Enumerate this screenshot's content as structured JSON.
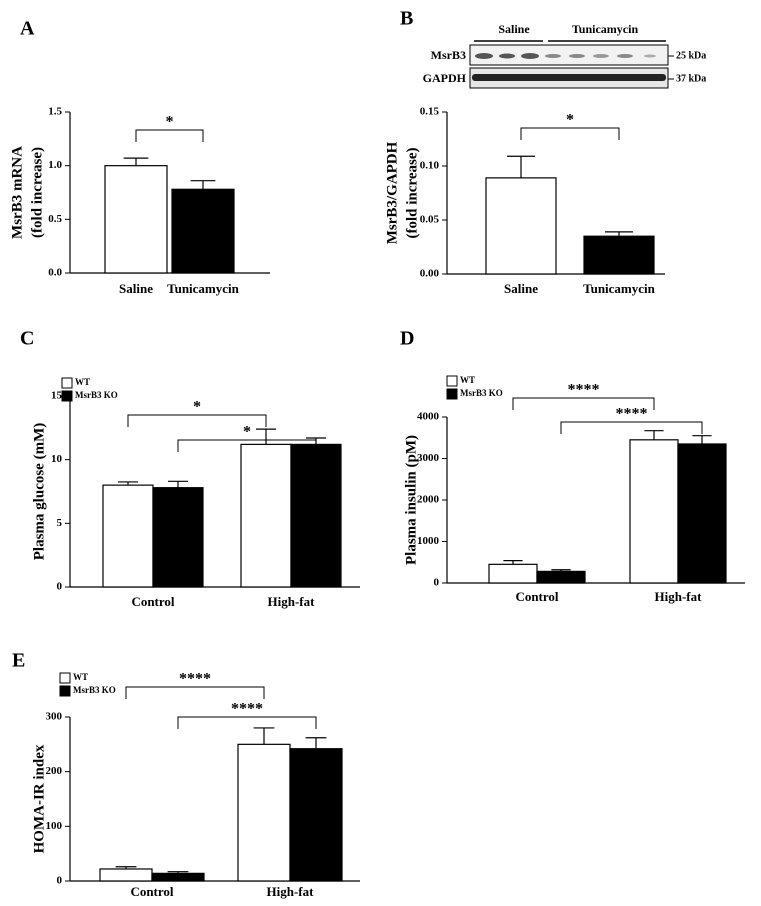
{
  "chart_data": [
    {
      "type": "bar",
      "panel": "A",
      "ylabel": [
        "MsrB3 mRNA",
        "(fold increase)"
      ],
      "categories": [
        "Saline",
        "Tunicamycin"
      ],
      "values": [
        1.0,
        0.78
      ],
      "errors": [
        0.07,
        0.08
      ],
      "color": "#ffffff",
      "colors": [
        "#ffffff",
        "#000000"
      ],
      "ylim": [
        0,
        1.5
      ],
      "yticks": [
        {
          "value": 0,
          "label": "0.0"
        },
        {
          "value": 0.5,
          "label": "0.5"
        },
        {
          "value": 1,
          "label": "1.0"
        },
        {
          "value": 1.5,
          "label": "1.5"
        }
      ],
      "annotations": [
        "*"
      ]
    },
    {
      "type": "bar",
      "panel": "B",
      "ylabel": [
        "MsrB3/GAPDH",
        "(fold increase)"
      ],
      "categories": [
        "Saline",
        "Tunicamycin"
      ],
      "values": [
        0.089,
        0.035
      ],
      "errors": [
        0.02,
        0.004
      ],
      "colors": [
        "#ffffff",
        "#000000"
      ],
      "ylim": [
        0,
        0.15
      ],
      "yticks": [
        {
          "value": 0,
          "label": "0.00"
        },
        {
          "value": 0.05,
          "label": "0.05"
        },
        {
          "value": 0.1,
          "label": "0.10"
        },
        {
          "value": 0.15,
          "label": "0.15"
        }
      ],
      "annotations": [
        "*"
      ],
      "blot": {
        "lanes": [
          "Saline",
          "Tunicamycin"
        ],
        "rows": [
          "MsrB3",
          "GAPDH"
        ],
        "markers": [
          "25 kDa",
          "37 kDa"
        ]
      }
    },
    {
      "type": "grouped-bar",
      "panel": "C",
      "ylabel": [
        "Plasma glucose (mM)"
      ],
      "categories": [
        "Control",
        "High-fat"
      ],
      "series": [
        {
          "name": "WT",
          "color": "#ffffff",
          "values": [
            8.0,
            11.2
          ],
          "errors": [
            0.25,
            1.2
          ]
        },
        {
          "name": "MsrB3 KO",
          "color": "#000000",
          "values": [
            7.8,
            11.2
          ],
          "errors": [
            0.5,
            0.5
          ]
        }
      ],
      "ylim": [
        0,
        15
      ],
      "yticks": [
        0,
        5,
        10,
        15
      ],
      "legend": "top-left",
      "annotations": [
        "*",
        "*"
      ]
    },
    {
      "type": "grouped-bar",
      "panel": "D",
      "ylabel": [
        "Plasma insulin (pM)"
      ],
      "categories": [
        "Control",
        "High-fat"
      ],
      "series": [
        {
          "name": "WT",
          "color": "#ffffff",
          "values": [
            450,
            3450
          ],
          "errors": [
            90,
            220
          ]
        },
        {
          "name": "MsrB3 KO",
          "color": "#000000",
          "values": [
            280,
            3350
          ],
          "errors": [
            40,
            200
          ]
        }
      ],
      "ylim": [
        0,
        4000
      ],
      "yticks": [
        0,
        1000,
        2000,
        3000,
        4000
      ],
      "legend": "top-left",
      "annotations": [
        "****",
        "****"
      ]
    },
    {
      "type": "grouped-bar",
      "panel": "E",
      "ylabel": [
        "HOMA-IR index"
      ],
      "categories": [
        "Control",
        "High-fat"
      ],
      "series": [
        {
          "name": "WT",
          "color": "#ffffff",
          "values": [
            22,
            250
          ],
          "errors": [
            4,
            30
          ]
        },
        {
          "name": "MsrB3 KO",
          "color": "#000000",
          "values": [
            14,
            242
          ],
          "errors": [
            3,
            20
          ]
        }
      ],
      "ylim": [
        0,
        300
      ],
      "yticks": [
        0,
        100,
        200,
        300
      ],
      "legend": "top-left",
      "annotations": [
        "****",
        "****"
      ]
    }
  ]
}
